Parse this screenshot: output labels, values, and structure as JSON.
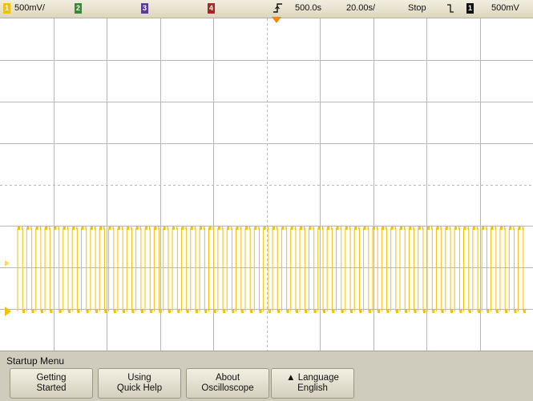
{
  "status_bar": {
    "channel1": {
      "number": "1",
      "scale": "500mV/",
      "color": "#f2c200"
    },
    "channel2": {
      "number": "2",
      "color": "#2f8f2f"
    },
    "channel3": {
      "number": "3",
      "color": "#5c3a9e"
    },
    "channel4": {
      "number": "4",
      "color": "#b22222"
    },
    "trigger_delay": "500.0s",
    "time_per_div": "20.00s/",
    "run_state": "Stop",
    "trigger_source": "1",
    "trigger_level": "500mV"
  },
  "display": {
    "trace_color": "#f5c000",
    "grid_color": "#b8b8b8",
    "ground_marker": "1",
    "waveform": "digital pulse train on channel 1"
  },
  "menu": {
    "title": "Startup Menu",
    "softkeys": [
      {
        "line1": "Getting",
        "line2": "Started"
      },
      {
        "line1": "Using",
        "line2": "Quick Help"
      },
      {
        "line1": "About",
        "line2": "Oscilloscope"
      },
      {
        "line1": "Language",
        "line2": "English",
        "indicator": "▲"
      }
    ]
  }
}
